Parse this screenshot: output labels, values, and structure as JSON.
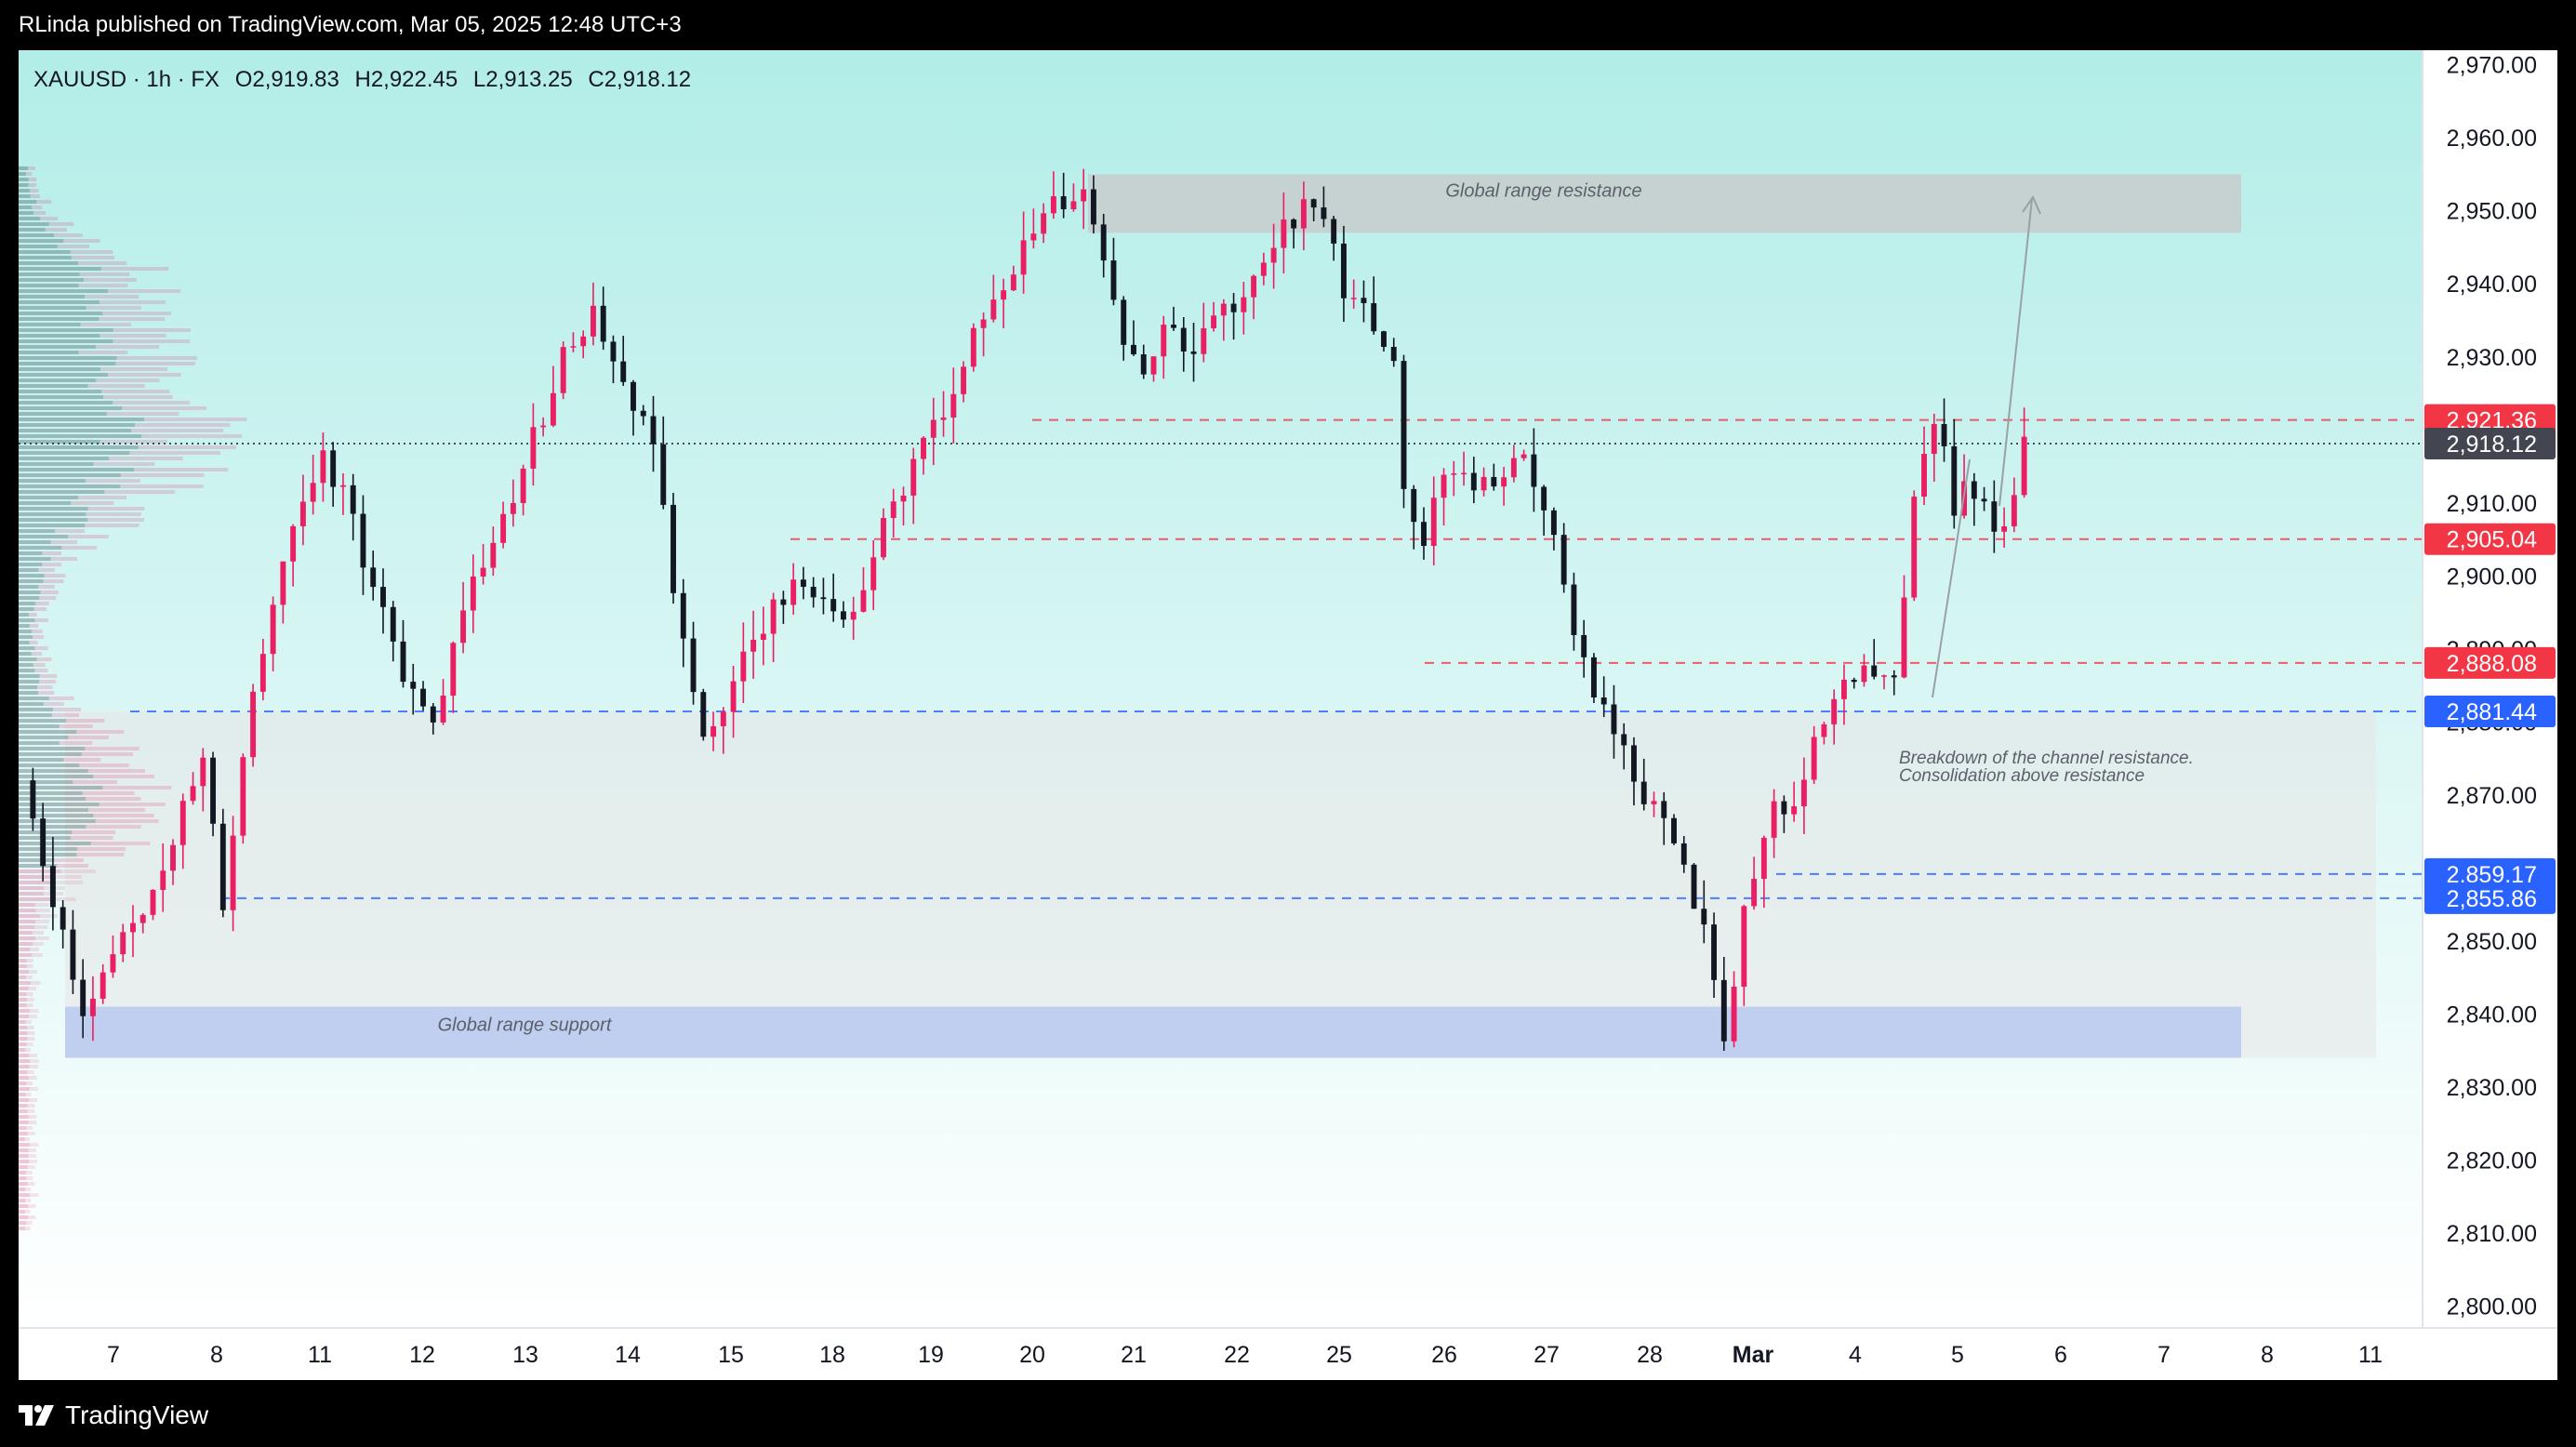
{
  "header": {
    "published": "RLinda published on TradingView.com, Mar 05, 2025 12:48 UTC+3"
  },
  "legend": {
    "symbol": "XAUUSD · 1h · FX",
    "open": "O2,919.83",
    "high": "H2,922.45",
    "low": "L2,913.25",
    "close": "C2,918.12"
  },
  "footer": {
    "brand": "TradingView"
  },
  "colors": {
    "bg_top": "#b2ede8",
    "bg_bottom": "#ffffff",
    "up": "#e91e63",
    "down": "#131722",
    "red_label": "#f23645",
    "blue_label": "#2962ff",
    "gray_label": "#434651"
  },
  "chart_data": {
    "type": "candlestick",
    "title": "",
    "ylim": [
      2797,
      2972
    ],
    "y_ticks": [
      "2,970.00",
      "2,960.00",
      "2,950.00",
      "2,940.00",
      "2,930.00",
      "2,920.00",
      "2,910.00",
      "2,900.00",
      "2,890.00",
      "2,880.00",
      "2,870.00",
      "2,860.00",
      "2,850.00",
      "2,840.00",
      "2,830.00",
      "2,820.00",
      "2,810.00",
      "2,800.00"
    ],
    "x_ticks": [
      "7",
      "8",
      "11",
      "12",
      "13",
      "14",
      "15",
      "18",
      "19",
      "20",
      "21",
      "22",
      "25",
      "26",
      "27",
      "28",
      "Mar",
      "4",
      "5",
      "6",
      "7",
      "8",
      "11"
    ],
    "last_price": {
      "value": 2918.12,
      "label": "2,918.12"
    },
    "levels": [
      {
        "value": 2921.36,
        "label": "2,921.36",
        "color": "#f23645",
        "from": "Feb 20"
      },
      {
        "value": 2905.04,
        "label": "2,905.04",
        "color": "#f23645",
        "from": "Feb 17"
      },
      {
        "value": 2888.08,
        "label": "2,888.08",
        "color": "#f23645",
        "from": "Feb 26"
      },
      {
        "value": 2881.44,
        "label": "2,881.44",
        "color": "#2962ff",
        "from": "Feb 7"
      },
      {
        "value": 2859.17,
        "label": "2,859.17",
        "color": "#2962ff",
        "from": "Feb 28"
      },
      {
        "value": 2855.86,
        "label": "2,855.86",
        "color": "#2962ff",
        "from": "Feb 8"
      }
    ],
    "zones": [
      {
        "name": "resistance",
        "label": "Global range resistance",
        "from": 2947,
        "to": 2955
      },
      {
        "name": "support",
        "label": "Global range support",
        "from": 2834,
        "to": 2841
      },
      {
        "name": "range",
        "label": "",
        "from": 2834,
        "to": 2881.44
      }
    ],
    "annotation": {
      "line1": "Breakdown of the channel resistance.",
      "line2": "Consolidation above resistance"
    },
    "path_points": [
      [
        0,
        2872
      ],
      [
        6,
        2840
      ],
      [
        12,
        2855
      ],
      [
        16,
        2868
      ],
      [
        18,
        2874
      ],
      [
        20,
        2855
      ],
      [
        23,
        2884
      ],
      [
        26,
        2902
      ],
      [
        28,
        2910
      ],
      [
        30,
        2916
      ],
      [
        32,
        2912
      ],
      [
        34,
        2902
      ],
      [
        36,
        2897
      ],
      [
        38,
        2885
      ],
      [
        41,
        2878
      ],
      [
        44,
        2895
      ],
      [
        47,
        2904
      ],
      [
        50,
        2915
      ],
      [
        54,
        2930
      ],
      [
        57,
        2936
      ],
      [
        60,
        2925
      ],
      [
        63,
        2918
      ],
      [
        66,
        2890
      ],
      [
        68,
        2878
      ],
      [
        71,
        2886
      ],
      [
        74,
        2894
      ],
      [
        77,
        2899
      ],
      [
        80,
        2897
      ],
      [
        83,
        2894
      ],
      [
        85,
        2904
      ],
      [
        88,
        2912
      ],
      [
        91,
        2920
      ],
      [
        94,
        2930
      ],
      [
        97,
        2938
      ],
      [
        100,
        2944
      ],
      [
        103,
        2950
      ],
      [
        106,
        2952
      ],
      [
        108,
        2944
      ],
      [
        110,
        2932
      ],
      [
        112,
        2928
      ],
      [
        114,
        2934
      ],
      [
        117,
        2930
      ],
      [
        120,
        2936
      ],
      [
        123,
        2941
      ],
      [
        126,
        2947
      ],
      [
        129,
        2951
      ],
      [
        132,
        2940
      ],
      [
        135,
        2935
      ],
      [
        137,
        2930
      ],
      [
        138,
        2910
      ],
      [
        140,
        2905
      ],
      [
        142,
        2914
      ],
      [
        145,
        2912
      ],
      [
        148,
        2913
      ],
      [
        150,
        2916
      ],
      [
        152,
        2910
      ],
      [
        154,
        2898
      ],
      [
        157,
        2885
      ],
      [
        160,
        2876
      ],
      [
        163,
        2868
      ],
      [
        166,
        2860
      ],
      [
        168,
        2852
      ],
      [
        170,
        2838
      ],
      [
        171,
        2842
      ],
      [
        172,
        2855
      ],
      [
        174,
        2866
      ],
      [
        177,
        2870
      ],
      [
        180,
        2880
      ],
      [
        182,
        2887
      ],
      [
        185,
        2886
      ],
      [
        187,
        2885
      ],
      [
        189,
        2912
      ],
      [
        191,
        2922
      ],
      [
        193,
        2910
      ],
      [
        195,
        2912
      ],
      [
        197,
        2905
      ],
      [
        199,
        2912
      ],
      [
        200,
        2918
      ]
    ],
    "candle_count": 200,
    "seed": 12345
  }
}
